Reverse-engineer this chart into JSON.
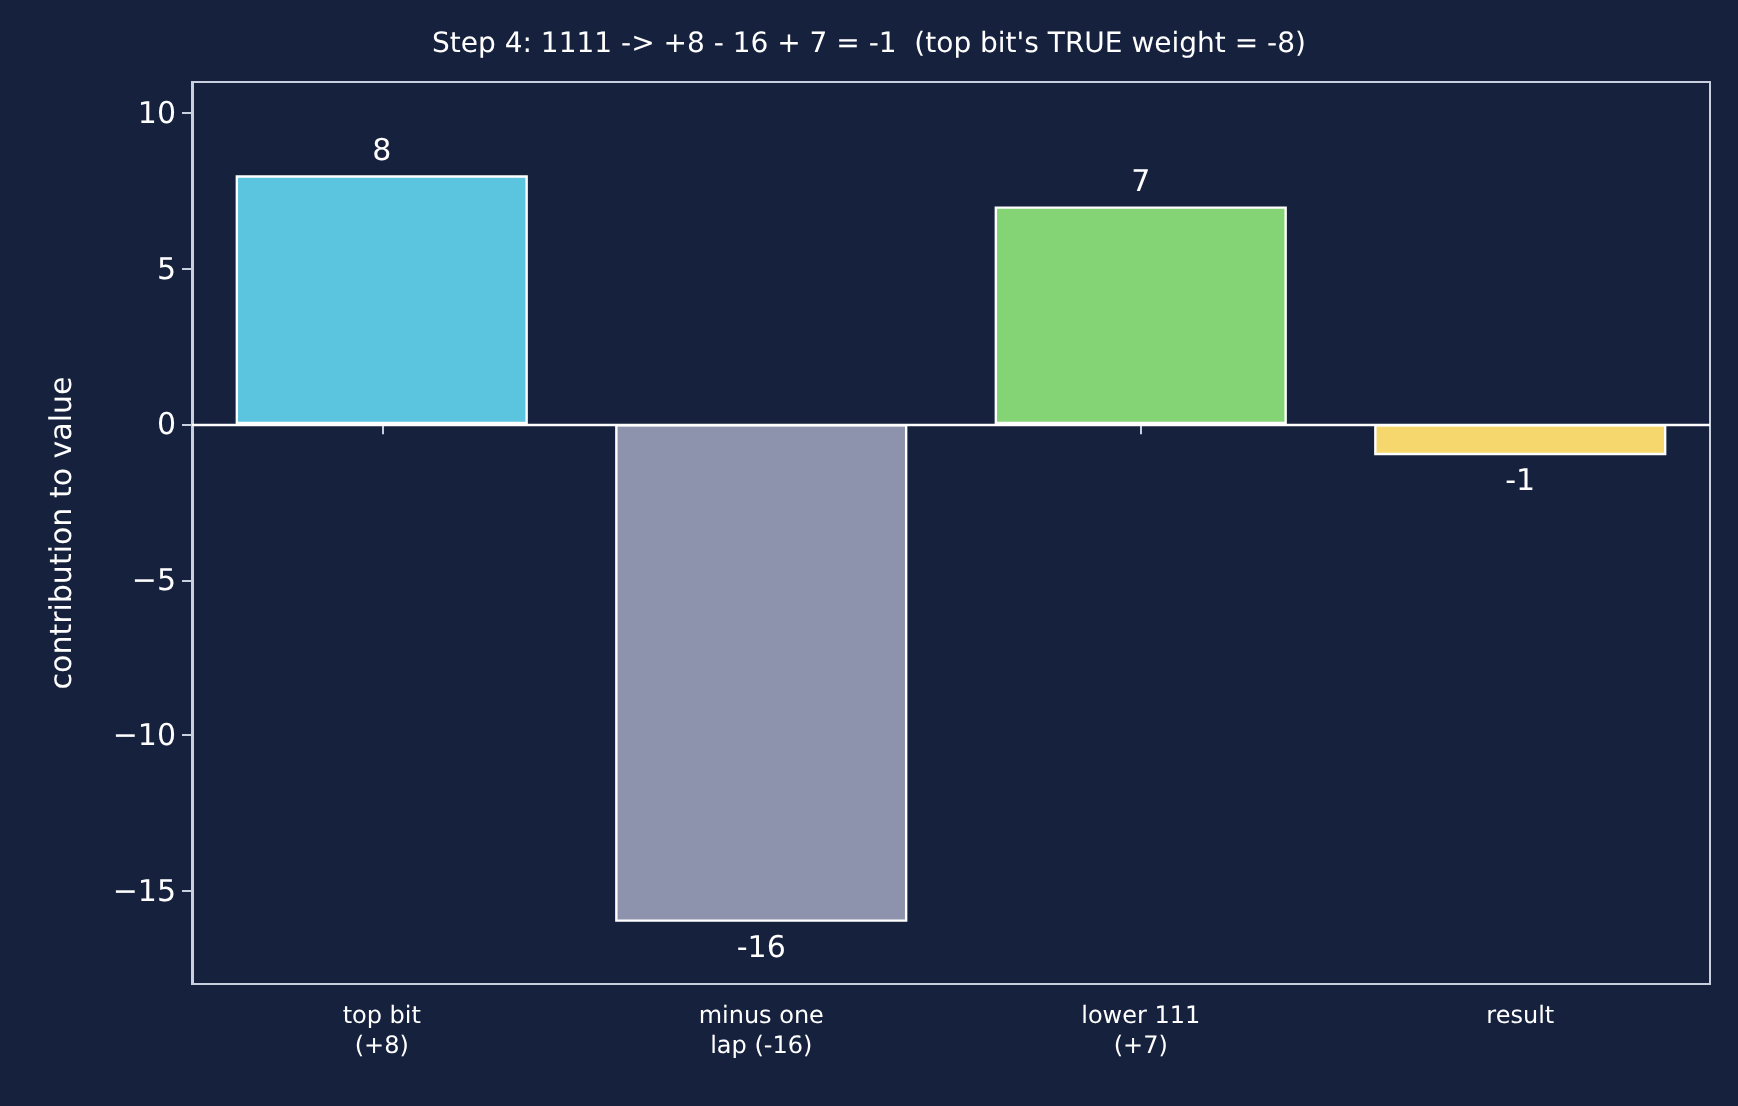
{
  "chart_data": {
    "type": "bar",
    "title": "Step 4: 1111 -> +8 - 16 + 7 = -1  (top bit's TRUE weight = -8)",
    "ylabel": "contribution to value",
    "categories": [
      "top bit\n(+8)",
      "minus one\nlap (-16)",
      "lower 111\n(+7)",
      "result"
    ],
    "values": [
      8,
      -16,
      7,
      -1
    ],
    "colors": [
      "#5bc5e0",
      "#8e93ad",
      "#84d475",
      "#f5d76e"
    ],
    "ylim": [
      -18,
      11
    ],
    "yticks": [
      {
        "value": -15,
        "label": "−15"
      },
      {
        "value": -10,
        "label": "−10"
      },
      {
        "value": -5,
        "label": "−5"
      },
      0,
      5,
      10
    ],
    "ref_lines": [
      {
        "axis": "y",
        "value": 0,
        "color": "#ffffff"
      }
    ],
    "data_labels": true,
    "grid": false
  }
}
